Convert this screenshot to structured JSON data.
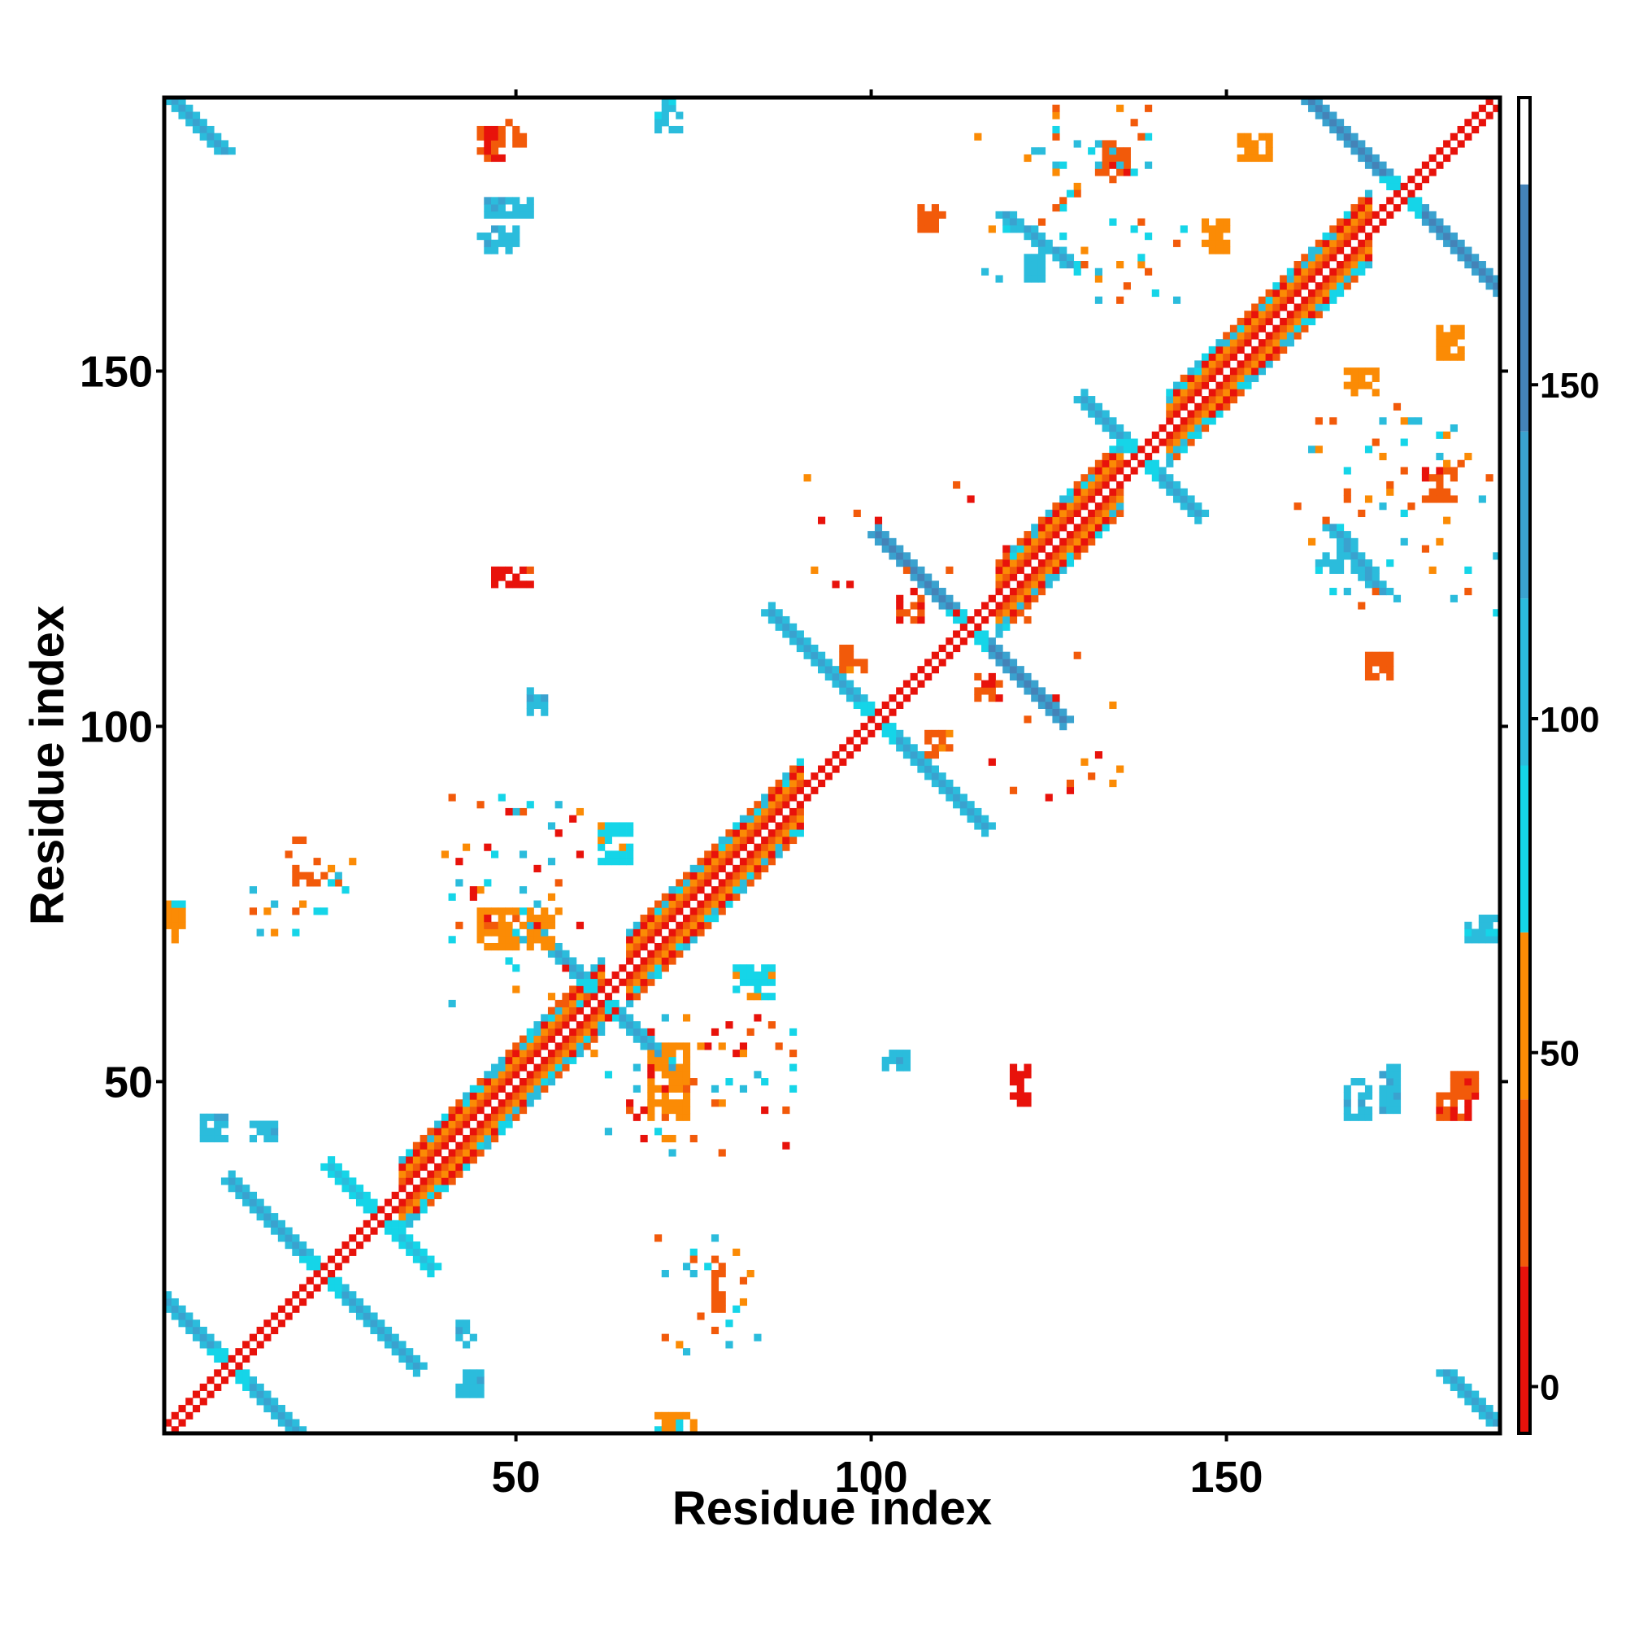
{
  "chart_data": {
    "type": "heatmap",
    "title": "",
    "xlabel": "Residue index",
    "ylabel": "Residue index",
    "xlim": [
      1,
      188
    ],
    "ylim": [
      1,
      188
    ],
    "x_ticks": [
      50,
      100,
      150
    ],
    "y_ticks": [
      50,
      100,
      150
    ],
    "colorbar": {
      "ticks": [
        0,
        50,
        100,
        150
      ],
      "range": [
        -7,
        193
      ],
      "bands": [
        {
          "from": -7,
          "to": 18,
          "color": "#e8120b"
        },
        {
          "from": 18,
          "to": 43,
          "color": "#f25a0a"
        },
        {
          "from": 43,
          "to": 68,
          "color": "#fb8b05"
        },
        {
          "from": 68,
          "to": 93,
          "color": "#15d5e8"
        },
        {
          "from": 93,
          "to": 118,
          "color": "#2bbcdc"
        },
        {
          "from": 118,
          "to": 143,
          "color": "#3aa2cf"
        },
        {
          "from": 143,
          "to": 180,
          "color": "#4483b8"
        },
        {
          "from": 180,
          "to": 193,
          "color": "#ffffff"
        }
      ]
    },
    "grid": false,
    "legend": "colorbar-right",
    "features": [
      {
        "kind": "diagonal",
        "start": 1,
        "end": 188,
        "value": 10
      },
      {
        "kind": "helix",
        "start": 34,
        "end": 62,
        "value": 30
      },
      {
        "kind": "helix",
        "start": 66,
        "end": 90,
        "value": 40
      },
      {
        "kind": "helix",
        "start": 118,
        "end": 135,
        "value": 30
      },
      {
        "kind": "helix",
        "start": 142,
        "end": 170,
        "value": 40
      },
      {
        "kind": "cross",
        "center": 10,
        "length": 14,
        "value": 140
      },
      {
        "kind": "cross",
        "center": 23,
        "length": 13,
        "value": 130
      },
      {
        "kind": "cross",
        "center": 31,
        "length": 7,
        "value": 110
      },
      {
        "kind": "cross",
        "center": 62,
        "length": 10,
        "value": 130
      },
      {
        "kind": "cross",
        "center": 101,
        "length": 15,
        "value": 140
      },
      {
        "kind": "cross",
        "center": 114,
        "length": 13,
        "value": 145
      },
      {
        "kind": "cross",
        "center": 138,
        "length": 8,
        "value": 120
      },
      {
        "kind": "cross",
        "center": 175,
        "length": 16,
        "value": 145
      },
      {
        "kind": "band",
        "i0": 2,
        "j0": 188,
        "i1": 9,
        "j1": 181,
        "value": 140
      },
      {
        "kind": "band",
        "i0": 181,
        "j0": 9,
        "i1": 188,
        "j1": 2,
        "value": 140
      },
      {
        "kind": "band",
        "i0": 119,
        "j0": 172,
        "i1": 128,
        "j1": 165,
        "value": 140
      },
      {
        "kind": "band",
        "i0": 165,
        "j0": 128,
        "i1": 172,
        "j1": 119,
        "value": 140
      },
      {
        "kind": "patch",
        "x": [
          132,
          136
        ],
        "y": [
          178,
          182
        ],
        "value": 25
      },
      {
        "kind": "patch",
        "x": [
          178,
          182
        ],
        "y": [
          132,
          136
        ],
        "value": 25
      },
      {
        "kind": "patch",
        "x": [
          47,
          52
        ],
        "y": [
          120,
          122
        ],
        "value": 10
      },
      {
        "kind": "patch",
        "x": [
          120,
          122
        ],
        "y": [
          47,
          52
        ],
        "value": 10
      },
      {
        "kind": "patch",
        "x": [
          52,
          54
        ],
        "y": [
          102,
          105
        ],
        "value": 110
      },
      {
        "kind": "patch",
        "x": [
          102,
          105
        ],
        "y": [
          52,
          54
        ],
        "value": 110
      },
      {
        "kind": "patch",
        "x": [
          18,
          25
        ],
        "y": [
          78,
          79
        ],
        "value": 30
      },
      {
        "kind": "patch",
        "x": [
          78,
          79
        ],
        "y": [
          18,
          25
        ],
        "value": 30
      },
      {
        "kind": "patch",
        "x": [
          1,
          3
        ],
        "y": [
          70,
          75
        ],
        "value": 60
      },
      {
        "kind": "patch",
        "x": [
          70,
          75
        ],
        "y": [
          1,
          3
        ],
        "value": 60
      },
      {
        "kind": "patch",
        "x": [
          184,
          188
        ],
        "y": [
          70,
          73
        ],
        "value": 100
      },
      {
        "kind": "patch",
        "x": [
          70,
          73
        ],
        "y": [
          184,
          188
        ],
        "value": 100
      },
      {
        "kind": "patch",
        "x": [
          45,
          55
        ],
        "y": [
          69,
          74
        ],
        "value": 55
      },
      {
        "kind": "patch",
        "x": [
          69,
          74
        ],
        "y": [
          45,
          55
        ],
        "value": 55
      },
      {
        "kind": "patch",
        "x": [
          6,
          9
        ],
        "y": [
          42,
          45
        ],
        "value": 110
      },
      {
        "kind": "patch",
        "x": [
          42,
          45
        ],
        "y": [
          6,
          9
        ],
        "value": 110
      },
      {
        "kind": "patch",
        "x": [
          167,
          170
        ],
        "y": [
          45,
          50
        ],
        "value": 110
      },
      {
        "kind": "patch",
        "x": [
          45,
          50
        ],
        "y": [
          167,
          170
        ],
        "value": 110
      },
      {
        "kind": "patch",
        "x": [
          180,
          184
        ],
        "y": [
          45,
          48
        ],
        "value": 20
      },
      {
        "kind": "patch",
        "x": [
          45,
          48
        ],
        "y": [
          180,
          184
        ],
        "value": 20
      },
      {
        "kind": "patch",
        "x": [
          104,
          107
        ],
        "y": [
          115,
          118
        ],
        "value": 20
      },
      {
        "kind": "patch",
        "x": [
          115,
          118
        ],
        "y": [
          104,
          107
        ],
        "value": 20
      },
      {
        "kind": "patch",
        "x": [
          46,
          52
        ],
        "y": [
          172,
          174
        ],
        "value": 110
      },
      {
        "kind": "patch",
        "x": [
          172,
          174
        ],
        "y": [
          46,
          52
        ],
        "value": 110
      },
      {
        "kind": "patch",
        "x": [
          48,
          51
        ],
        "y": [
          182,
          185
        ],
        "value": 25
      },
      {
        "kind": "patch",
        "x": [
          182,
          185
        ],
        "y": [
          48,
          51
        ],
        "value": 25
      },
      {
        "kind": "patch",
        "x": [
          107,
          110
        ],
        "y": [
          170,
          173
        ],
        "value": 30
      },
      {
        "kind": "patch",
        "x": [
          170,
          173
        ],
        "y": [
          107,
          110
        ],
        "value": 30
      },
      {
        "kind": "patch",
        "x": [
          122,
          124
        ],
        "y": [
          163,
          166
        ],
        "value": 100
      },
      {
        "kind": "patch",
        "x": [
          163,
          166
        ],
        "y": [
          122,
          124
        ],
        "value": 100
      },
      {
        "kind": "patch",
        "x": [
          167,
          171
        ],
        "y": [
          147,
          150
        ],
        "value": 55
      },
      {
        "kind": "patch",
        "x": [
          147,
          150
        ],
        "y": [
          167,
          171
        ],
        "value": 55
      },
      {
        "kind": "patch",
        "x": [
          180,
          183
        ],
        "y": [
          152,
          156
        ],
        "value": 55
      },
      {
        "kind": "patch",
        "x": [
          152,
          156
        ],
        "y": [
          180,
          183
        ],
        "value": 55
      },
      {
        "kind": "patch",
        "x": [
          13,
          16
        ],
        "y": [
          42,
          44
        ],
        "value": 110
      },
      {
        "kind": "patch",
        "x": [
          42,
          44
        ],
        "y": [
          13,
          16
        ],
        "value": 110
      },
      {
        "kind": "patch",
        "x": [
          62,
          66
        ],
        "y": [
          81,
          86
        ],
        "value": 75
      },
      {
        "kind": "patch",
        "x": [
          81,
          86
        ],
        "y": [
          62,
          66
        ],
        "value": 75
      },
      {
        "kind": "patch",
        "x": [
          108,
          111
        ],
        "y": [
          96,
          99
        ],
        "value": 35
      },
      {
        "kind": "patch",
        "x": [
          96,
          99
        ],
        "y": [
          108,
          111
        ],
        "value": 35
      }
    ],
    "noise": [
      {
        "region": [
          60,
          90,
          40,
          60
        ],
        "count": 55,
        "values": [
          10,
          30,
          55,
          80,
          100
        ]
      },
      {
        "region": [
          40,
          60,
          60,
          90
        ],
        "count": 55,
        "values": [
          10,
          30,
          55,
          80,
          100
        ]
      },
      {
        "region": [
          70,
          85,
          12,
          28
        ],
        "count": 22,
        "values": [
          30,
          55,
          80,
          100
        ]
      },
      {
        "region": [
          12,
          28,
          70,
          85
        ],
        "count": 22,
        "values": [
          30,
          55,
          80,
          100
        ]
      },
      {
        "region": [
          125,
          145,
          160,
          185
        ],
        "count": 30,
        "values": [
          20,
          55,
          90,
          110
        ]
      },
      {
        "region": [
          160,
          185,
          125,
          145
        ],
        "count": 30,
        "values": [
          20,
          55,
          90,
          110
        ]
      },
      {
        "region": [
          160,
          188,
          115,
          140
        ],
        "count": 30,
        "values": [
          20,
          55,
          90,
          110
        ]
      },
      {
        "region": [
          115,
          140,
          160,
          188
        ],
        "count": 30,
        "values": [
          20,
          55,
          90,
          110
        ]
      },
      {
        "region": [
          90,
          120,
          115,
          135
        ],
        "count": 16,
        "values": [
          10,
          30,
          55
        ]
      },
      {
        "region": [
          115,
          135,
          90,
          120
        ],
        "count": 16,
        "values": [
          10,
          30,
          55
        ]
      }
    ]
  }
}
